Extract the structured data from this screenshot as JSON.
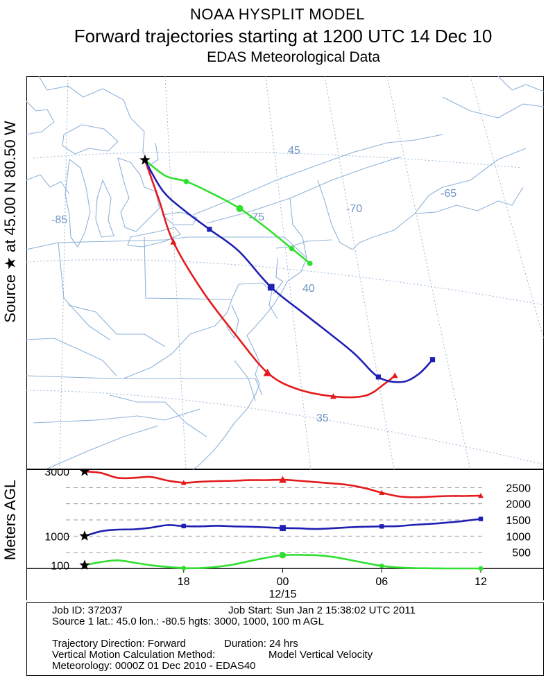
{
  "header": {
    "line1": "NOAA HYSPLIT MODEL",
    "line2": "Forward trajectories starting at 1200 UTC 14 Dec 10",
    "line3": "EDAS Meteorological Data"
  },
  "source_label": "Source ★ at  45.00 N  80.50 W",
  "profile_axis_label": "Meters AGL",
  "colors": {
    "red": "#e41a1c",
    "blue": "#1f1fb4",
    "green": "#2fe02f",
    "map": "#8fb3d9"
  },
  "chart_data": [
    {
      "type": "line",
      "title": "Forward trajectories starting at 1200 UTC 14 Dec 10",
      "map_labels": [
        "45",
        "-85",
        "-75",
        "-70",
        "-65",
        "40",
        "35"
      ],
      "source": {
        "lat": 45.0,
        "lon": -80.5
      },
      "series": [
        {
          "name": "3000",
          "color": "red",
          "points": [
            [
              45.0,
              -80.5
            ],
            [
              43.8,
              -80.2
            ],
            [
              42.5,
              -79.9
            ],
            [
              40.9,
              -78.9
            ],
            [
              39.4,
              -77.6
            ],
            [
              38.2,
              -76.4
            ],
            [
              37.6,
              -75.1
            ],
            [
              37.2,
              -73.2
            ],
            [
              37.1,
              -71.5
            ],
            [
              37.4,
              -70.3
            ],
            [
              37.6,
              -69.7
            ]
          ],
          "markers": [
            2,
            5,
            7,
            10
          ]
        },
        {
          "name": "1000",
          "color": "blue",
          "points": [
            [
              45.0,
              -80.5
            ],
            [
              44.0,
              -79.9
            ],
            [
              43.3,
              -79.0
            ],
            [
              42.6,
              -77.9
            ],
            [
              41.8,
              -76.6
            ],
            [
              40.6,
              -75.3
            ],
            [
              39.6,
              -73.7
            ],
            [
              38.4,
              -71.7
            ],
            [
              37.6,
              -70.6
            ],
            [
              37.4,
              -69.4
            ],
            [
              37.6,
              -68.4
            ],
            [
              38.0,
              -67.5
            ]
          ],
          "markers": [
            3,
            5,
            8,
            11
          ]
        },
        {
          "name": "100",
          "color": "green",
          "points": [
            [
              45.0,
              -80.5
            ],
            [
              44.4,
              -79.6
            ],
            [
              44.1,
              -78.6
            ],
            [
              43.6,
              -77.4
            ],
            [
              43.0,
              -76.1
            ],
            [
              42.3,
              -74.9
            ],
            [
              41.6,
              -73.8
            ],
            [
              41.1,
              -73.0
            ]
          ],
          "markers": [
            2,
            4,
            6,
            7
          ]
        }
      ]
    },
    {
      "type": "line",
      "ylabel": "Meters AGL",
      "y_left_ticks": [
        3000,
        1000,
        100
      ],
      "y_right_ticks": [
        2500,
        2000,
        1500,
        1000,
        500
      ],
      "ylim": [
        0,
        3000
      ],
      "x_ticks": [
        "18",
        "00",
        "06",
        "12"
      ],
      "x_sublabel": "12/15",
      "x_hours": [
        0,
        24
      ],
      "series": [
        {
          "name": "3000",
          "color": "red",
          "hours": [
            0,
            1,
            2,
            3,
            4,
            5,
            6,
            7,
            8,
            9,
            10,
            11,
            12,
            13,
            14,
            15,
            16,
            17,
            18,
            19,
            20,
            21,
            22,
            23,
            24
          ],
          "values": [
            3000,
            2950,
            2800,
            2800,
            2830,
            2720,
            2650,
            2680,
            2700,
            2710,
            2730,
            2730,
            2740,
            2710,
            2670,
            2630,
            2580,
            2480,
            2340,
            2230,
            2200,
            2220,
            2240,
            2240,
            2250
          ],
          "markers": [
            6,
            12,
            18,
            24
          ]
        },
        {
          "name": "1000",
          "color": "blue",
          "hours": [
            0,
            1,
            2,
            3,
            4,
            5,
            6,
            7,
            8,
            9,
            10,
            11,
            12,
            13,
            14,
            15,
            16,
            17,
            18,
            19,
            20,
            21,
            22,
            23,
            24
          ],
          "values": [
            1000,
            1150,
            1200,
            1210,
            1260,
            1340,
            1310,
            1300,
            1320,
            1300,
            1290,
            1270,
            1250,
            1240,
            1220,
            1240,
            1270,
            1290,
            1300,
            1310,
            1350,
            1380,
            1420,
            1470,
            1530
          ],
          "markers": [
            6,
            12,
            18,
            24
          ]
        },
        {
          "name": "100",
          "color": "green",
          "hours": [
            0,
            1,
            2,
            3,
            4,
            5,
            6,
            7,
            8,
            9,
            10,
            11,
            12,
            13,
            14,
            15,
            16,
            17,
            18,
            19,
            20,
            21,
            22,
            23,
            24
          ],
          "values": [
            100,
            200,
            250,
            180,
            100,
            50,
            10,
            10,
            50,
            120,
            230,
            330,
            410,
            420,
            410,
            360,
            270,
            170,
            80,
            30,
            10,
            5,
            0,
            0,
            0
          ],
          "markers": [
            6,
            12,
            18,
            24
          ]
        }
      ]
    }
  ],
  "job_info": {
    "job_id": "Job ID: 372037",
    "job_start": "Job Start: Sun Jan  2 15:38:02 UTC 2011",
    "source1": "Source 1 lat.: 45.0  lon.: -80.5  hgts: 3000, 1000, 100 m AGL",
    "direction": "Trajectory Direction: Forward",
    "duration": "Duration: 24 hrs",
    "vmethod_label": "Vertical Motion Calculation Method:",
    "vmethod_value": "Model Vertical Velocity",
    "meteorology": "Meteorology: 0000Z 01 Dec 2010 - EDAS40"
  }
}
